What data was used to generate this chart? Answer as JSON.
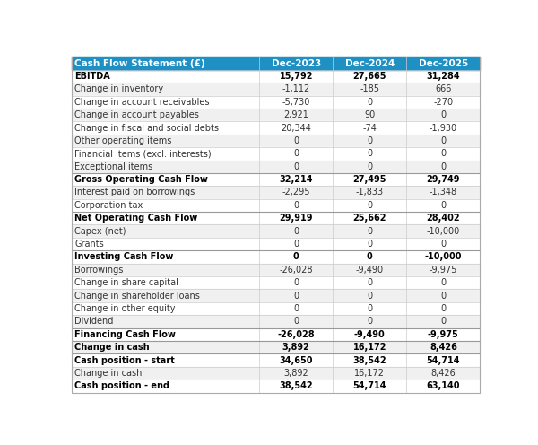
{
  "title": "Cash Flow Statement (£)",
  "columns": [
    "Dec-2023",
    "Dec-2024",
    "Dec-2025"
  ],
  "rows": [
    {
      "label": "EBITDA",
      "values": [
        "15,792",
        "27,665",
        "31,284"
      ],
      "bold": true,
      "bg": "white"
    },
    {
      "label": "Change in inventory",
      "values": [
        "-1,112",
        "-185",
        "666"
      ],
      "bold": false,
      "bg": "#f0f0f0"
    },
    {
      "label": "Change in account receivables",
      "values": [
        "-5,730",
        "0",
        "-270"
      ],
      "bold": false,
      "bg": "white"
    },
    {
      "label": "Change in account payables",
      "values": [
        "2,921",
        "90",
        "0"
      ],
      "bold": false,
      "bg": "#f0f0f0"
    },
    {
      "label": "Change in fiscal and social debts",
      "values": [
        "20,344",
        "-74",
        "-1,930"
      ],
      "bold": false,
      "bg": "white"
    },
    {
      "label": "Other operating items",
      "values": [
        "0",
        "0",
        "0"
      ],
      "bold": false,
      "bg": "#f0f0f0"
    },
    {
      "label": "Financial items (excl. interests)",
      "values": [
        "0",
        "0",
        "0"
      ],
      "bold": false,
      "bg": "white"
    },
    {
      "label": "Exceptional items",
      "values": [
        "0",
        "0",
        "0"
      ],
      "bold": false,
      "bg": "#f0f0f0"
    },
    {
      "label": "Gross Operating Cash Flow",
      "values": [
        "32,214",
        "27,495",
        "29,749"
      ],
      "bold": true,
      "bg": "white"
    },
    {
      "label": "Interest paid on borrowings",
      "values": [
        "-2,295",
        "-1,833",
        "-1,348"
      ],
      "bold": false,
      "bg": "#f0f0f0"
    },
    {
      "label": "Corporation tax",
      "values": [
        "0",
        "0",
        "0"
      ],
      "bold": false,
      "bg": "white"
    },
    {
      "label": "Net Operating Cash Flow",
      "values": [
        "29,919",
        "25,662",
        "28,402"
      ],
      "bold": true,
      "bg": "white"
    },
    {
      "label": "Capex (net)",
      "values": [
        "0",
        "0",
        "-10,000"
      ],
      "bold": false,
      "bg": "#f0f0f0"
    },
    {
      "label": "Grants",
      "values": [
        "0",
        "0",
        "0"
      ],
      "bold": false,
      "bg": "white"
    },
    {
      "label": "Investing Cash Flow",
      "values": [
        "0",
        "0",
        "-10,000"
      ],
      "bold": true,
      "bg": "white"
    },
    {
      "label": "Borrowings",
      "values": [
        "-26,028",
        "-9,490",
        "-9,975"
      ],
      "bold": false,
      "bg": "#f0f0f0"
    },
    {
      "label": "Change in share capital",
      "values": [
        "0",
        "0",
        "0"
      ],
      "bold": false,
      "bg": "white"
    },
    {
      "label": "Change in shareholder loans",
      "values": [
        "0",
        "0",
        "0"
      ],
      "bold": false,
      "bg": "#f0f0f0"
    },
    {
      "label": "Change in other equity",
      "values": [
        "0",
        "0",
        "0"
      ],
      "bold": false,
      "bg": "white"
    },
    {
      "label": "Dividend",
      "values": [
        "0",
        "0",
        "0"
      ],
      "bold": false,
      "bg": "#f0f0f0"
    },
    {
      "label": "Financing Cash Flow",
      "values": [
        "-26,028",
        "-9,490",
        "-9,975"
      ],
      "bold": true,
      "bg": "white"
    },
    {
      "label": "Change in cash",
      "values": [
        "3,892",
        "16,172",
        "8,426"
      ],
      "bold": true,
      "bg": "#f0f0f0"
    },
    {
      "label": "Cash position - start",
      "values": [
        "34,650",
        "38,542",
        "54,714"
      ],
      "bold": true,
      "bg": "white"
    },
    {
      "label": "Change in cash",
      "values": [
        "3,892",
        "16,172",
        "8,426"
      ],
      "bold": false,
      "bg": "#f0f0f0"
    },
    {
      "label": "Cash position - end",
      "values": [
        "38,542",
        "54,714",
        "63,140"
      ],
      "bold": true,
      "bg": "white"
    }
  ],
  "header_bg": "#1e90c3",
  "header_text_color": "white",
  "bold_row_text": "#000000",
  "normal_row_text": "#333333",
  "border_color": "#cccccc",
  "separator_rows": [
    8,
    11,
    14,
    20,
    21,
    22
  ]
}
